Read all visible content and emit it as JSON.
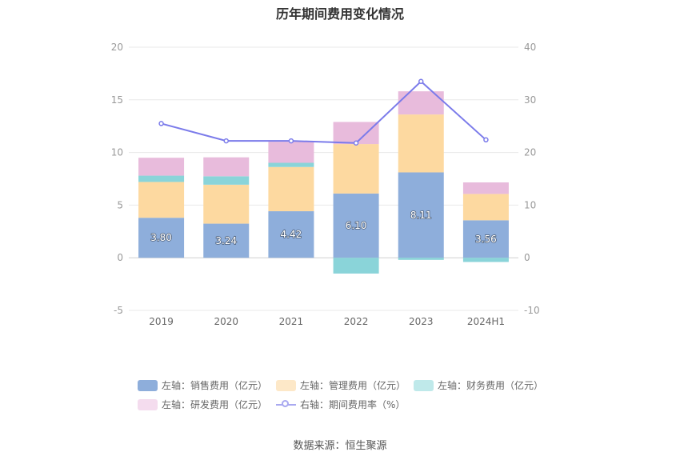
{
  "title": "历年期间费用变化情况",
  "source": "数据来源：恒生聚源",
  "chart_data": {
    "type": "bar",
    "stacked": true,
    "title": "历年期间费用变化情况",
    "categories": [
      "2019",
      "2020",
      "2021",
      "2022",
      "2023",
      "2024H1"
    ],
    "left_axis": {
      "ylim": [
        -5,
        20
      ],
      "ticks": [
        "-5",
        "0",
        "5",
        "10",
        "15",
        "20"
      ]
    },
    "right_axis": {
      "ylim": [
        -10,
        40
      ],
      "ticks": [
        "-10",
        "0",
        "10",
        "20",
        "30",
        "40"
      ]
    },
    "grid": true,
    "legend_position": "bottom",
    "series": [
      {
        "name": "左轴：销售费用（亿元）",
        "axis": "left",
        "type": "bar",
        "color": "#8eaedb",
        "values": [
          3.8,
          3.24,
          4.42,
          6.1,
          8.11,
          3.56
        ],
        "labels": [
          "3.80",
          "3.24",
          "4.42",
          "6.10",
          "8.11",
          "3.56"
        ]
      },
      {
        "name": "左轴：管理费用（亿元）",
        "axis": "left",
        "type": "bar",
        "color": "#fdd9a0",
        "values": [
          3.4,
          3.7,
          4.2,
          4.7,
          5.5,
          2.5
        ]
      },
      {
        "name": "左轴：财务费用（亿元）",
        "axis": "left",
        "type": "bar",
        "color": "#8ad4d9",
        "values": [
          0.6,
          0.8,
          0.4,
          -1.5,
          -0.2,
          -0.4
        ]
      },
      {
        "name": "左轴：研发费用（亿元）",
        "axis": "left",
        "type": "bar",
        "color": "#e8bbdc",
        "values": [
          1.7,
          1.8,
          2.0,
          2.1,
          2.2,
          1.1
        ]
      },
      {
        "name": "右轴：期间费用率（%）",
        "axis": "right",
        "type": "line",
        "color": "#7b7bea",
        "values": [
          25.5,
          22.2,
          22.2,
          21.8,
          33.5,
          22.4
        ]
      }
    ]
  }
}
